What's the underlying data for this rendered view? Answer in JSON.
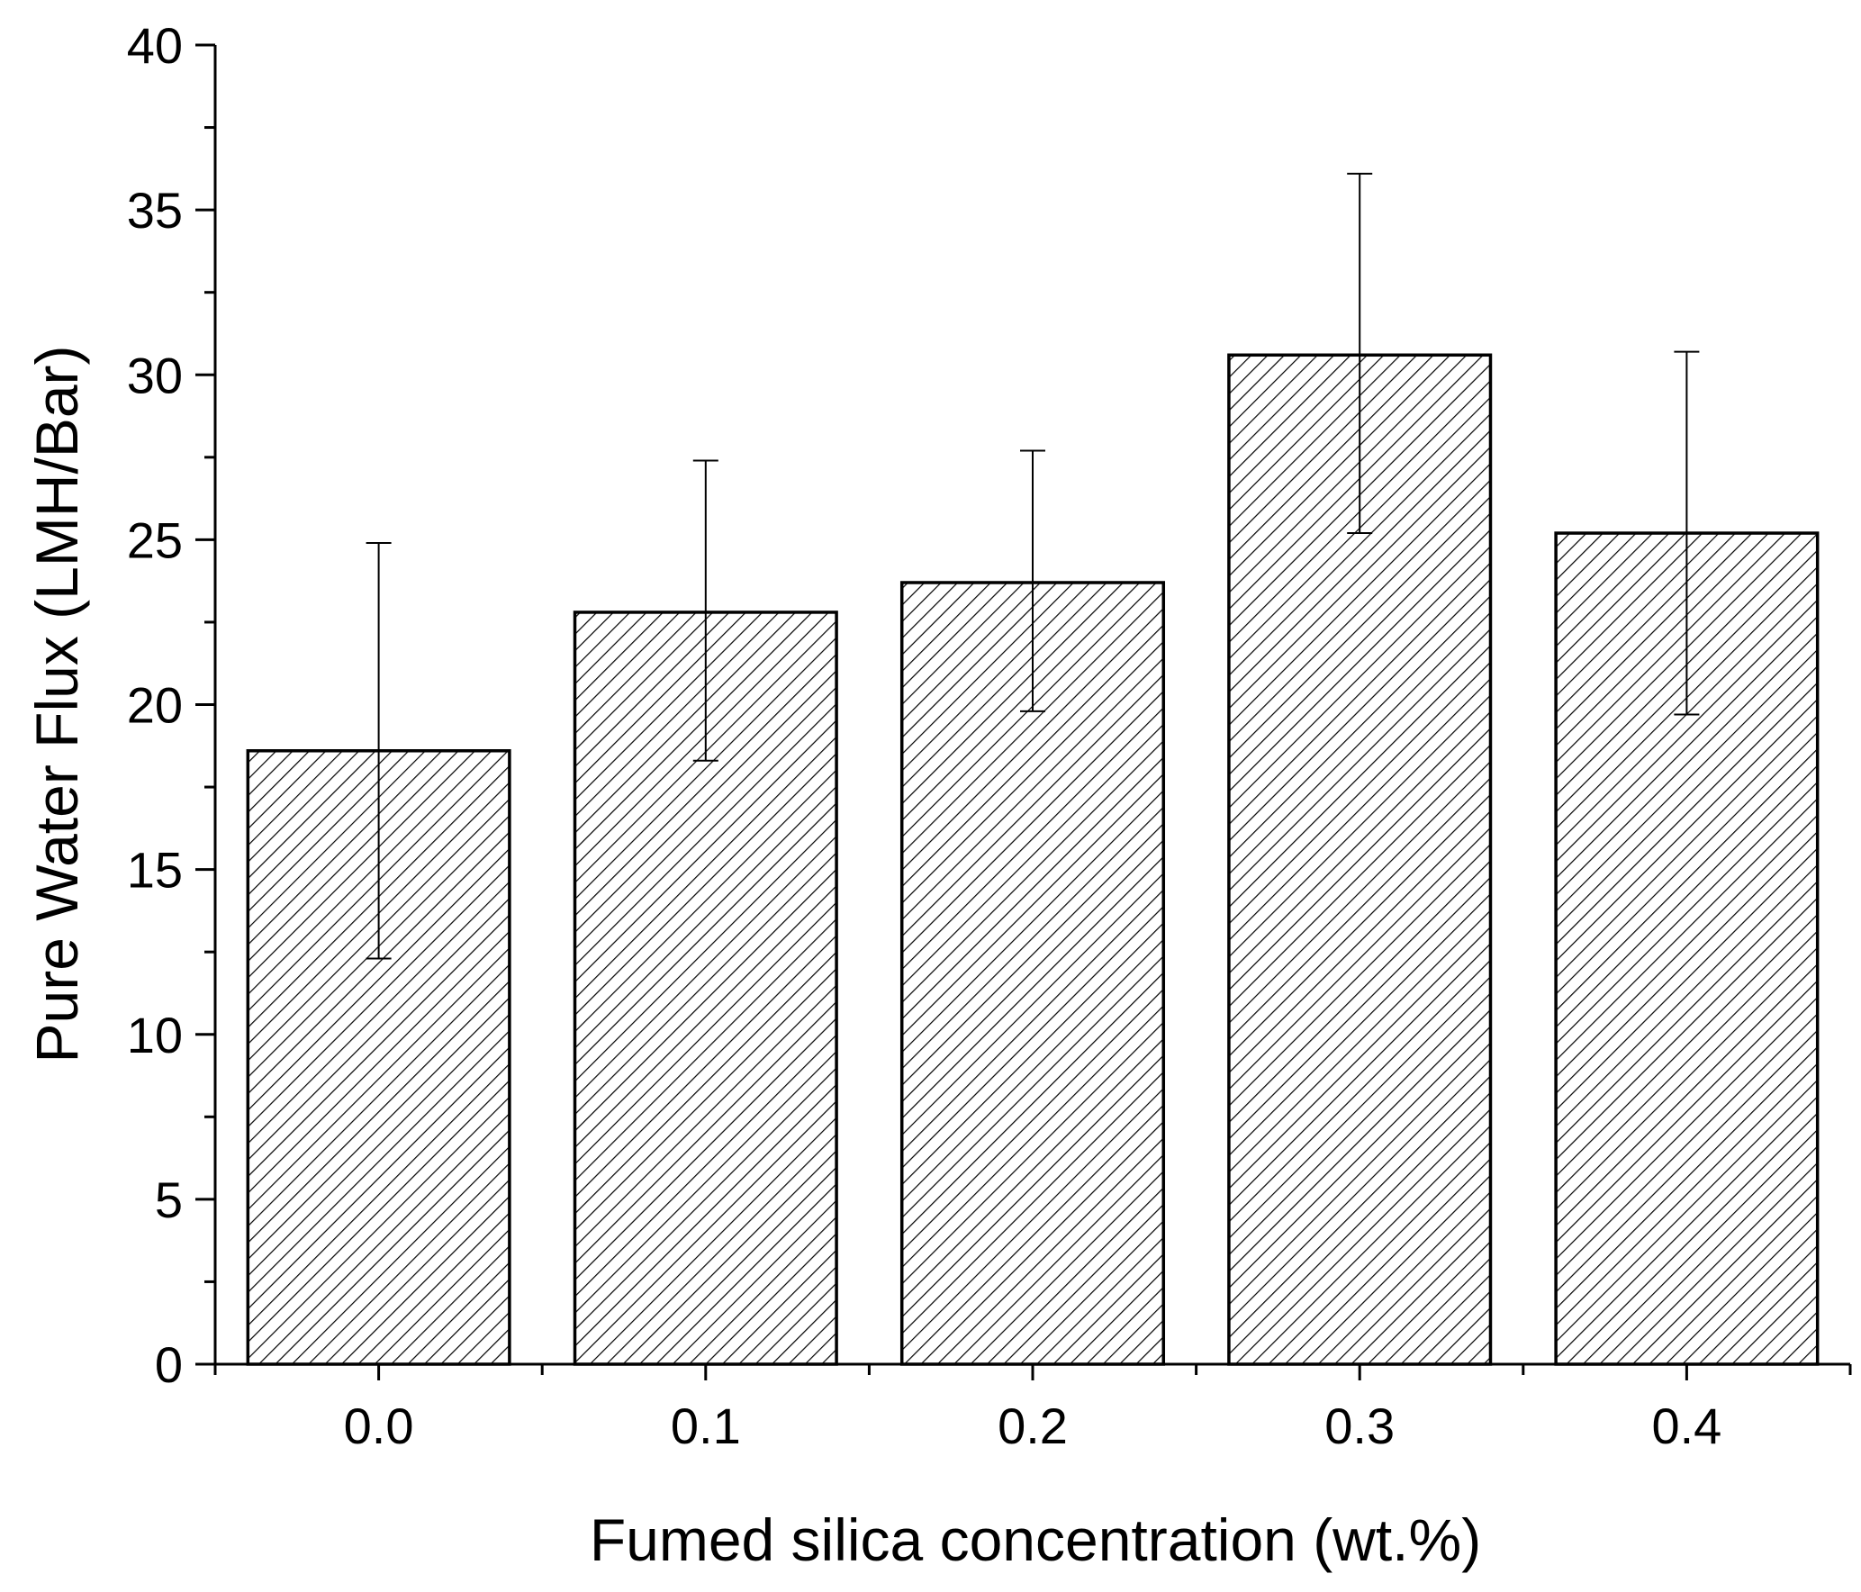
{
  "chart_data": {
    "type": "bar",
    "title": "",
    "xlabel": "Fumed silica concentration  (wt.%)",
    "ylabel": "Pure Water Flux (LMH/Bar)",
    "categories": [
      "0.0",
      "0.1",
      "0.2",
      "0.3",
      "0.4"
    ],
    "values": [
      18.6,
      22.8,
      23.7,
      30.6,
      25.2
    ],
    "error_low": [
      12.3,
      18.3,
      19.8,
      25.2,
      19.7
    ],
    "error_high": [
      24.9,
      27.4,
      27.7,
      36.1,
      30.7
    ],
    "ylim": [
      0,
      40
    ],
    "y_ticks": [
      "0",
      "5",
      "10",
      "15",
      "20",
      "25",
      "30",
      "35",
      "40"
    ],
    "y_minor_step": 2.5,
    "bar_fill": "hatched",
    "grid": false,
    "legend": "none",
    "colors": {
      "bar_edge": "#000000",
      "hatch": "#000000",
      "background": "#ffffff",
      "axis": "#000000"
    }
  }
}
